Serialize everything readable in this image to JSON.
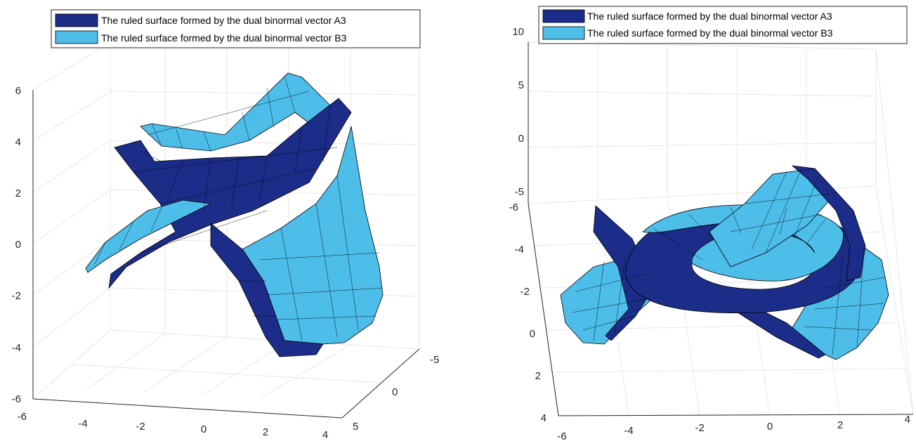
{
  "colors": {
    "A3": "#1b2d88",
    "B3": "#4dbde9"
  },
  "chart_data": [
    {
      "type": "surface3d",
      "series": [
        {
          "name": "The ruled surface formed by the dual binormal vector A3",
          "color": "#1b2d88"
        },
        {
          "name": "The ruled surface formed by the dual binormal vector B3",
          "color": "#4dbde9"
        }
      ],
      "x_ticks": [
        "-6",
        "-4",
        "-2",
        "0",
        "2",
        "4"
      ],
      "y_ticks": [
        "-5",
        "0",
        "5"
      ],
      "z_ticks": [
        "-6",
        "-4",
        "-2",
        "0",
        "2",
        "4",
        "6"
      ],
      "xlim": [
        -6,
        4
      ],
      "ylim": [
        -5,
        5
      ],
      "zlim": [
        -6,
        6
      ],
      "grid": true,
      "legend": "top"
    },
    {
      "type": "surface3d",
      "series": [
        {
          "name": "The ruled surface formed by the dual binormal vector A3",
          "color": "#1b2d88"
        },
        {
          "name": "The ruled surface formed by the dual binormal vector B3",
          "color": "#4dbde9"
        }
      ],
      "x_ticks": [
        "-6",
        "-4",
        "-2",
        "0",
        "2",
        "4"
      ],
      "y_ticks": [
        "-6",
        "-4",
        "-2",
        "0",
        "2",
        "4"
      ],
      "z_ticks": [
        "-5",
        "0",
        "5",
        "10"
      ],
      "xlim": [
        -6,
        4
      ],
      "ylim": [
        -6,
        4
      ],
      "zlim": [
        -5,
        10
      ],
      "grid": true,
      "legend": "top"
    }
  ]
}
